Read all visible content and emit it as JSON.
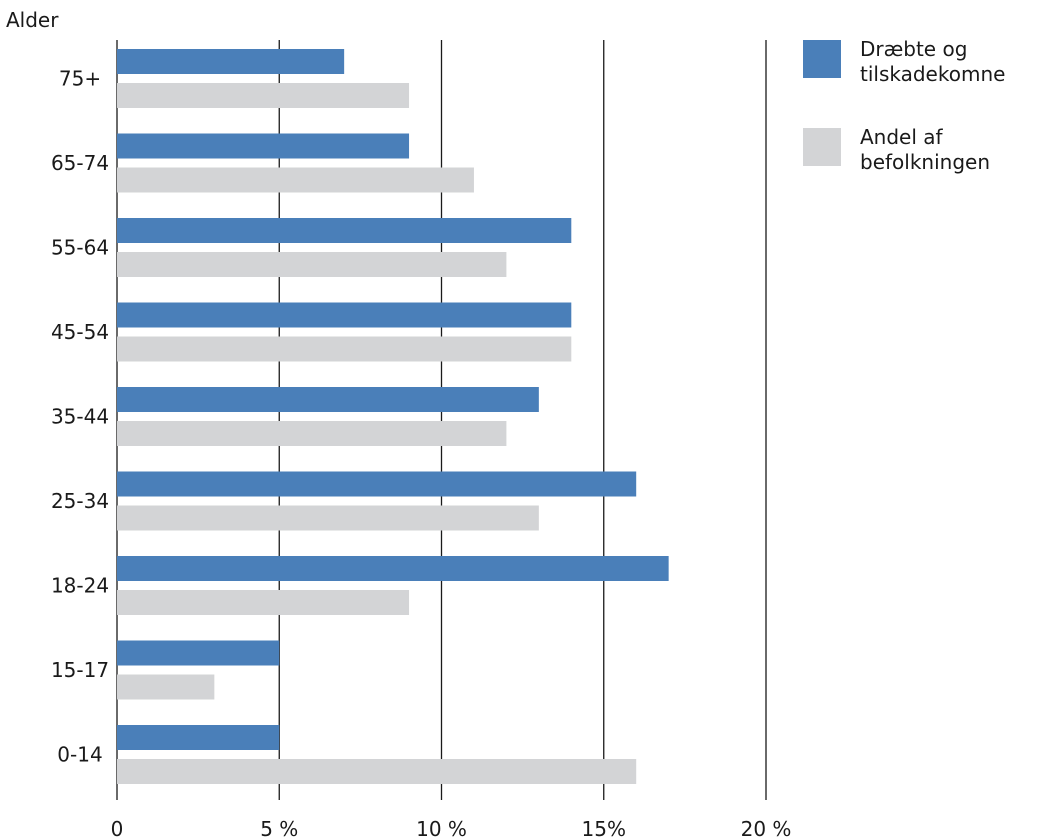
{
  "chart_data": {
    "type": "bar",
    "orientation": "horizontal",
    "title": "",
    "ylabel": "Alder",
    "xlabel": "",
    "categories": [
      "75+",
      "65-74",
      "55-64",
      "45-54",
      "35-44",
      "25-34",
      "18-24",
      "15-17",
      "0-14"
    ],
    "series": [
      {
        "name": "Dræbte og tilskadekomne",
        "color": "#4a7fb9",
        "values": [
          7,
          9,
          14,
          14,
          13,
          16,
          17,
          5,
          5
        ]
      },
      {
        "name": "Andel af befolkningen",
        "color": "#d3d4d6",
        "values": [
          9,
          11,
          12,
          14,
          12,
          13,
          9,
          3,
          16
        ]
      }
    ],
    "xlim": [
      0,
      20
    ],
    "xticks": [
      0,
      5,
      10,
      15,
      20
    ],
    "xtick_labels": [
      "0",
      "5 %",
      "10 %",
      "15%",
      "20 %"
    ],
    "grid": "vertical",
    "legend_position": "right",
    "legend": [
      {
        "lines": [
          "Dræbte og",
          "tilskadekomne"
        ],
        "color": "#4a7fb9"
      },
      {
        "lines": [
          "Andel af",
          "befolkningen"
        ],
        "color": "#d3d4d6"
      }
    ]
  }
}
